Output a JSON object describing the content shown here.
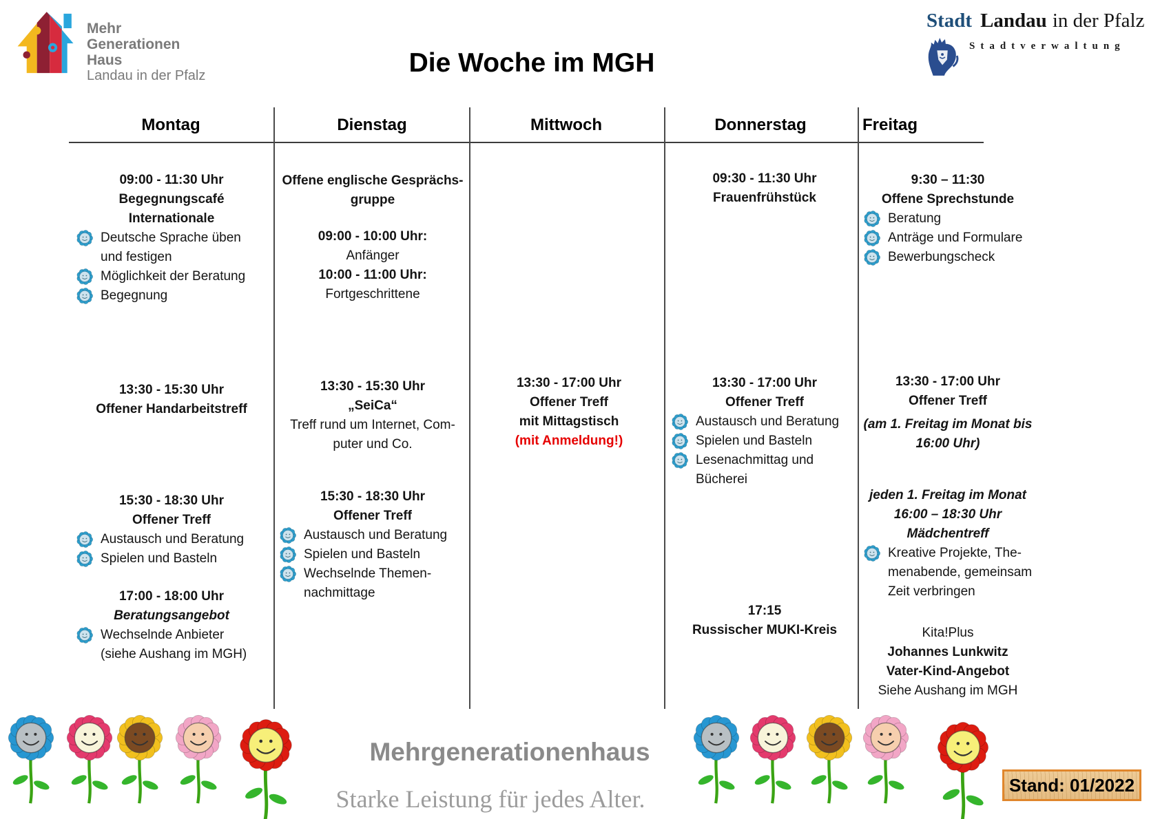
{
  "header": {
    "title": "Die Woche im MGH",
    "mgh_logo": {
      "line1": "Mehr",
      "line2": "Generationen",
      "line3": "Haus",
      "line4": "Landau in der Pfalz"
    },
    "stadt_logo": {
      "word1": "Stadt",
      "word2": "Landau",
      "word3": "in der Pfalz",
      "sub": "Stadtverwaltung"
    }
  },
  "schedule": {
    "days": [
      {
        "label": "Montag"
      },
      {
        "label": "Dienstag"
      },
      {
        "label": "Mittwoch"
      },
      {
        "label": "Donnerstag"
      },
      {
        "label": "Freitag"
      }
    ],
    "columns": [
      {
        "day": "Montag",
        "blocks": [
          {
            "items": [
              {
                "style": "time",
                "text": "09:00 - 11:30 Uhr"
              },
              {
                "style": "title",
                "text": "Begegnungscafé"
              },
              {
                "style": "title",
                "text": "Internationale"
              },
              {
                "style": "bullet",
                "text": "Deutsche Sprache üben\nund festigen"
              },
              {
                "style": "bullet",
                "text": "Möglichkeit der Beratung"
              },
              {
                "style": "bullet",
                "text": "Begegnung"
              }
            ]
          },
          {
            "items": [
              {
                "style": "time",
                "text": "13:30 - 15:30 Uhr"
              },
              {
                "style": "title",
                "text": "Offener Handarbeitstreff"
              }
            ]
          },
          {
            "items": [
              {
                "style": "time",
                "text": "15:30 - 18:30 Uhr"
              },
              {
                "style": "title",
                "text": "Offener Treff"
              },
              {
                "style": "bullet",
                "text": "Austausch und Beratung"
              },
              {
                "style": "bullet",
                "text": "Spielen und Basteln"
              }
            ]
          },
          {
            "items": [
              {
                "style": "time",
                "text": "17:00 - 18:00 Uhr"
              },
              {
                "style": "title_italic",
                "text": "Beratungsangebot"
              },
              {
                "style": "bullet",
                "text": "Wechselnde Anbieter\n(siehe Aushang im MGH)"
              }
            ]
          }
        ]
      },
      {
        "day": "Dienstag",
        "blocks": [
          {
            "items": [
              {
                "style": "title",
                "text": "Offene englische Gesprächs-\ngruppe"
              }
            ]
          },
          {
            "items": [
              {
                "style": "time",
                "text": "09:00 - 10:00 Uhr:"
              },
              {
                "style": "plain",
                "text": "Anfänger"
              },
              {
                "style": "time",
                "text": "10:00 - 11:00 Uhr:"
              },
              {
                "style": "plain",
                "text": "Fortgeschrittene"
              }
            ]
          },
          {
            "items": [
              {
                "style": "time",
                "text": "13:30 - 15:30 Uhr"
              },
              {
                "style": "title",
                "text": "„SeiCa“"
              },
              {
                "style": "plain",
                "text": "Treff rund um Internet, Com-\nputer und Co."
              }
            ]
          },
          {
            "items": [
              {
                "style": "time",
                "text": "15:30 - 18:30 Uhr"
              },
              {
                "style": "title",
                "text": "Offener Treff"
              },
              {
                "style": "bullet",
                "text": "Austausch und Beratung"
              },
              {
                "style": "bullet",
                "text": "Spielen und Basteln"
              },
              {
                "style": "bullet",
                "text": "Wechselnde Themen-\nnachmittage"
              }
            ]
          }
        ]
      },
      {
        "day": "Mittwoch",
        "blocks": [
          {
            "items": [
              {
                "style": "time",
                "text": "13:30 - 17:00 Uhr"
              },
              {
                "style": "title",
                "text": "Offener Treff"
              },
              {
                "style": "title",
                "text": "mit Mittagstisch"
              },
              {
                "style": "red",
                "text": "(mit Anmeldung!)"
              }
            ]
          }
        ]
      },
      {
        "day": "Donnerstag",
        "blocks": [
          {
            "items": [
              {
                "style": "time",
                "text": "09:30 - 11:30 Uhr"
              },
              {
                "style": "title",
                "text": "Frauenfrühstück"
              }
            ]
          },
          {
            "items": [
              {
                "style": "time",
                "text": "13:30 - 17:00 Uhr"
              },
              {
                "style": "title",
                "text": "Offener Treff"
              },
              {
                "style": "bullet",
                "text": "Austausch und Beratung"
              },
              {
                "style": "bullet",
                "text": "Spielen und Basteln"
              },
              {
                "style": "bullet",
                "text": "Lesenachmittag und\nBücherei"
              }
            ]
          },
          {
            "items": [
              {
                "style": "time",
                "text": "17:15"
              },
              {
                "style": "title",
                "text": "Russischer MUKI-Kreis"
              }
            ]
          }
        ]
      },
      {
        "day": "Freitag",
        "blocks": [
          {
            "items": [
              {
                "style": "time",
                "text": "9:30 – 11:30"
              },
              {
                "style": "title",
                "text": "Offene Sprechstunde"
              },
              {
                "style": "bullet",
                "text": "Beratung"
              },
              {
                "style": "bullet",
                "text": "Anträge und Formulare"
              },
              {
                "style": "bullet",
                "text": "Bewerbungscheck"
              }
            ]
          },
          {
            "items": [
              {
                "style": "time",
                "text": "13:30 - 17:00 Uhr"
              },
              {
                "style": "title",
                "text": "Offener Treff"
              },
              {
                "style": "note",
                "text": "(am 1. Freitag im Monat bis\n16:00 Uhr)"
              }
            ]
          },
          {
            "items": [
              {
                "style": "note",
                "text": "jeden 1. Freitag im Monat"
              },
              {
                "style": "note",
                "text": "16:00 – 18:30 Uhr"
              },
              {
                "style": "note",
                "text": "Mädchentreff"
              },
              {
                "style": "bullet",
                "text": "Kreative Projekte, The-\nmenabende, gemeinsam\nZeit verbringen"
              }
            ]
          },
          {
            "items": [
              {
                "style": "plain",
                "text": "Kita!Plus"
              },
              {
                "style": "title",
                "text": "Johannes Lunkwitz"
              },
              {
                "style": "title",
                "text": "Vater-Kind-Angebot"
              },
              {
                "style": "plain",
                "text": "Siehe Aushang im MGH"
              }
            ]
          }
        ]
      }
    ]
  },
  "footer": {
    "brand": "Mehrgenerationenhaus",
    "slogan": "Starke Leistung für jedes Alter.",
    "stand_label": "Stand: 01/2022",
    "accent_colors": {
      "red_text": "#e60000",
      "stand_border": "#e0862c",
      "stand_bg": "#eac globbed",
      "bullet_blue": "#2d9dcb",
      "stadt_blue": "#1e4e79",
      "gray_brand": "#8a8a8a"
    },
    "flowers_left": [
      {
        "petals": "#2797d2",
        "face": "#b9c0c4"
      },
      {
        "petals": "#e43a6d",
        "face": "#f8f4da"
      },
      {
        "petals": "#f2c01e",
        "face": "#7b4a22"
      },
      {
        "petals": "#f2a6c6",
        "face": "#f6cfae"
      },
      {
        "petals": "#dd1c10",
        "face": "#f7ef79"
      }
    ],
    "flowers_right": [
      {
        "petals": "#2797d2",
        "face": "#b9c0c4"
      },
      {
        "petals": "#e43a6d",
        "face": "#f8f4da"
      },
      {
        "petals": "#f2c01e",
        "face": "#7b4a22"
      },
      {
        "petals": "#f2a6c6",
        "face": "#f6cfae"
      },
      {
        "petals": "#dd1c10",
        "face": "#f7ef79"
      }
    ]
  }
}
